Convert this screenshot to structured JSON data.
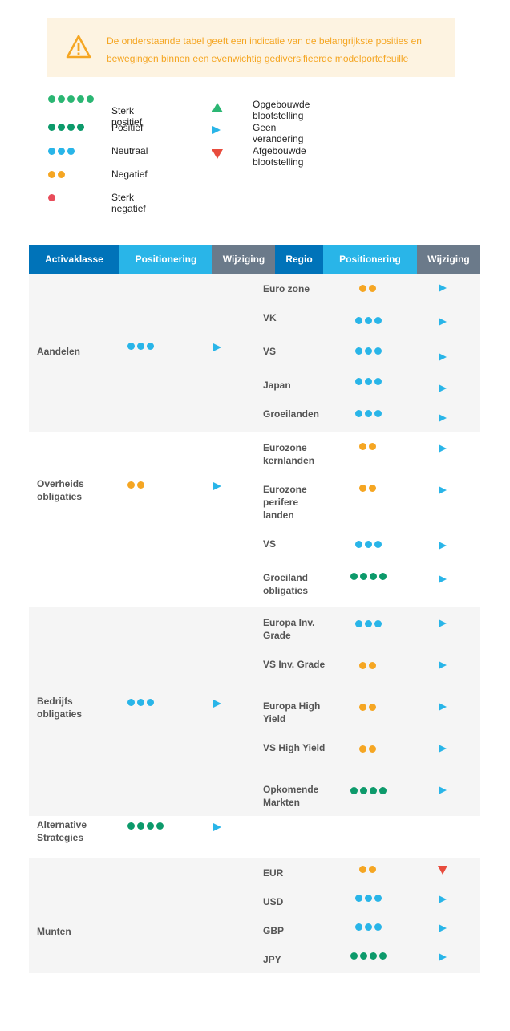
{
  "notice": {
    "text": "De onderstaande tabel geeft een indicatie van de belangrijkste posities en bewegingen binnen een evenwichtig gediversifieerde modelportefeuille"
  },
  "colors": {
    "sterk_positief": "#2bb673",
    "positief": "#0d9a6b",
    "neutraal": "#29b5e8",
    "negatief": "#f5a623",
    "sterk_negatief": "#e84c5a",
    "header_dark": "#0073b9",
    "header_light": "#29b5e8",
    "header_gray": "#6b7a8a"
  },
  "legend": {
    "positions": [
      {
        "label": "Sterk positief",
        "dots": 5,
        "color": "#2bb673"
      },
      {
        "label": "Positief",
        "dots": 4,
        "color": "#0d9a6b"
      },
      {
        "label": "Neutraal",
        "dots": 3,
        "color": "#29b5e8"
      },
      {
        "label": "Negatief",
        "dots": 2,
        "color": "#f5a623"
      },
      {
        "label": "Sterk negatief",
        "dots": 1,
        "color": "#e84c5a"
      }
    ],
    "changes": [
      {
        "label": "Opgebouwde blootstelling",
        "icon": "triangle-up-icon"
      },
      {
        "label": "Geen verandering",
        "icon": "triangle-right-icon"
      },
      {
        "label": "Afgebouwde blootstelling",
        "icon": "triangle-down-icon"
      }
    ]
  },
  "table": {
    "headers": [
      "Activaklasse",
      "Positionering",
      "Wijziging",
      "Regio",
      "Positionering",
      "Wijziging"
    ],
    "groups": [
      {
        "asset": "Aandelen",
        "dots": 3,
        "color": "#29b5e8",
        "change": "right",
        "regions": [
          {
            "name": "Euro zone",
            "dots": 2,
            "color": "#f5a623",
            "change": "right"
          },
          {
            "name": "VK",
            "dots": 3,
            "color": "#29b5e8",
            "change": "right"
          },
          {
            "name": "VS",
            "dots": 3,
            "color": "#29b5e8",
            "change": "right"
          },
          {
            "name": "Japan",
            "dots": 3,
            "color": "#29b5e8",
            "change": "right"
          },
          {
            "name": "Groeilanden",
            "dots": 3,
            "color": "#29b5e8",
            "change": "right"
          }
        ]
      },
      {
        "asset": "Overheids obligaties",
        "dots": 2,
        "color": "#f5a623",
        "change": "right",
        "regions": [
          {
            "name": "Eurozone kernlanden",
            "dots": 2,
            "color": "#f5a623",
            "change": "right"
          },
          {
            "name": "Eurozone perifere landen",
            "dots": 2,
            "color": "#f5a623",
            "change": "right"
          },
          {
            "name": "VS",
            "dots": 3,
            "color": "#29b5e8",
            "change": "right"
          },
          {
            "name": "Groeiland obligaties",
            "dots": 4,
            "color": "#0d9a6b",
            "change": "right"
          }
        ]
      },
      {
        "asset": "Bedrijfs obligaties",
        "dots": 3,
        "color": "#29b5e8",
        "change": "right",
        "regions": [
          {
            "name": "Europa Inv. Grade",
            "dots": 3,
            "color": "#29b5e8",
            "change": "right"
          },
          {
            "name": "VS Inv. Grade",
            "dots": 2,
            "color": "#f5a623",
            "change": "right"
          },
          {
            "name": "Europa High Yield",
            "dots": 2,
            "color": "#f5a623",
            "change": "right"
          },
          {
            "name": "VS High Yield",
            "dots": 2,
            "color": "#f5a623",
            "change": "right"
          },
          {
            "name": "Opkomende Markten",
            "dots": 4,
            "color": "#0d9a6b",
            "change": "right"
          }
        ]
      },
      {
        "asset": "Alternative Strategies",
        "dots": 4,
        "color": "#0d9a6b",
        "change": "right",
        "regions": []
      },
      {
        "asset": "Munten",
        "dots": 0,
        "color": "",
        "change": "",
        "regions": [
          {
            "name": "EUR",
            "dots": 2,
            "color": "#f5a623",
            "change": "down"
          },
          {
            "name": "USD",
            "dots": 3,
            "color": "#29b5e8",
            "change": "right"
          },
          {
            "name": "GBP",
            "dots": 3,
            "color": "#29b5e8",
            "change": "right"
          },
          {
            "name": "JPY",
            "dots": 4,
            "color": "#0d9a6b",
            "change": "right"
          }
        ]
      }
    ]
  }
}
